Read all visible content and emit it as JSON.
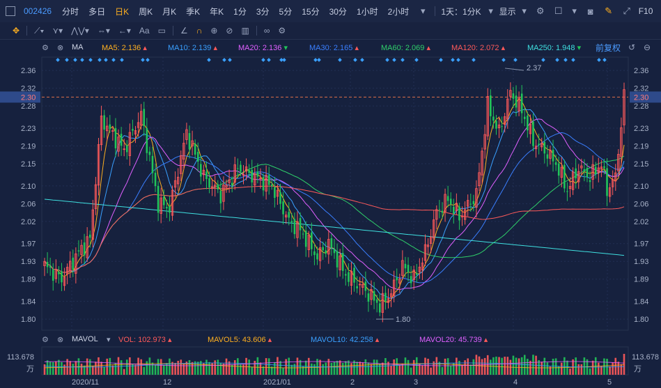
{
  "toolbar": {
    "code": "002426",
    "periods": [
      "分时",
      "多日",
      "日K",
      "周K",
      "月K",
      "季K",
      "年K",
      "1分",
      "3分",
      "5分",
      "15分",
      "30分",
      "1小时",
      "2小时"
    ],
    "active_period": "日K",
    "period_setting": "1天：1分K",
    "display_label": "显示",
    "f10_label": "F10"
  },
  "drawbar": {
    "text_tool": "Aa"
  },
  "ma_legend": {
    "title": "MA",
    "items": [
      {
        "label": "MA5: 2.136",
        "color": "#ffb020"
      },
      {
        "label": "MA10: 2.139",
        "color": "#3aa0ff"
      },
      {
        "label": "MA20: 2.136",
        "color": "#e060ff"
      },
      {
        "label": "MA30: 2.165",
        "color": "#3a7fff"
      },
      {
        "label": "MA60: 2.069",
        "color": "#2fcf6a"
      },
      {
        "label": "MA120: 2.072",
        "color": "#ff5a5a"
      },
      {
        "label": "MA250: 1.948",
        "color": "#3fe0e0"
      }
    ],
    "adjust_label": "前复权"
  },
  "vol_legend": {
    "title": "MAVOL",
    "items": [
      {
        "label": "VOL: 102.973",
        "color": "#ff5a5a"
      },
      {
        "label": "MAVOL5: 43.606",
        "color": "#ffb020"
      },
      {
        "label": "MAVOL10: 42.258",
        "color": "#3aa0ff"
      },
      {
        "label": "MAVOL20: 45.739",
        "color": "#e060ff"
      }
    ]
  },
  "price_axis": {
    "ticks": [
      "2.36",
      "2.32",
      "2.28",
      "2.23",
      "2.19",
      "2.15",
      "2.10",
      "2.06",
      "2.02",
      "1.97",
      "1.93",
      "1.89",
      "1.84",
      "1.80"
    ],
    "current": "2.30"
  },
  "volume_axis": {
    "max": "113.678",
    "unit": "万"
  },
  "time_axis": [
    "2020/11",
    "12",
    "2021/01",
    "2",
    "3",
    "4",
    "5"
  ],
  "annotations": {
    "high": "2.37",
    "low": "1.80"
  },
  "colors": {
    "up": "#ff5a5a",
    "down": "#21c45a",
    "background": "#16213e"
  }
}
